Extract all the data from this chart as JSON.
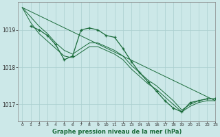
{
  "title": "Graphe pression niveau de la mer (hPa)",
  "bg_color": "#cce8e8",
  "line_color": "#1a6b3a",
  "grid_color": "#aacfcf",
  "xlim": [
    -0.5,
    23
  ],
  "ylim": [
    1016.55,
    1019.75
  ],
  "yticks": [
    1017,
    1018,
    1019
  ],
  "xticks": [
    0,
    1,
    2,
    3,
    4,
    5,
    6,
    7,
    8,
    9,
    10,
    11,
    12,
    13,
    14,
    15,
    16,
    17,
    18,
    19,
    20,
    21,
    22,
    23
  ],
  "line_straight": [
    [
      0,
      23
    ],
    [
      1019.6,
      1017.1
    ]
  ],
  "line_smooth1": [
    1019.6,
    1019.35,
    1019.1,
    1018.9,
    1018.65,
    1018.45,
    1018.35,
    1018.5,
    1018.65,
    1018.65,
    1018.55,
    1018.45,
    1018.3,
    1018.05,
    1017.85,
    1017.65,
    1017.5,
    1017.3,
    1017.1,
    1016.85,
    1017.0,
    1017.1,
    1017.15,
    1017.15
  ],
  "line_smooth2": [
    1019.6,
    1019.2,
    1018.9,
    1018.7,
    1018.5,
    1018.3,
    1018.25,
    1018.4,
    1018.55,
    1018.55,
    1018.45,
    1018.35,
    1018.2,
    1017.95,
    1017.75,
    1017.55,
    1017.4,
    1017.2,
    1017.0,
    1016.8,
    1016.95,
    1017.05,
    1017.1,
    1017.1
  ],
  "series_main_x": [
    1,
    2,
    3,
    4,
    5,
    6,
    7,
    8,
    9,
    10,
    11,
    12,
    13,
    14,
    15,
    16,
    17,
    18,
    19,
    20,
    21,
    22,
    23
  ],
  "series_main": [
    1019.1,
    1019.0,
    1018.85,
    1018.6,
    1018.2,
    1018.3,
    1019.0,
    1019.05,
    1019.0,
    1018.85,
    1018.8,
    1018.5,
    1018.15,
    1017.85,
    1017.6,
    1017.35,
    1017.1,
    1016.9,
    1016.8,
    1017.05,
    1017.1,
    1017.15,
    1017.15
  ],
  "figsize": [
    3.2,
    2.0
  ],
  "dpi": 100
}
